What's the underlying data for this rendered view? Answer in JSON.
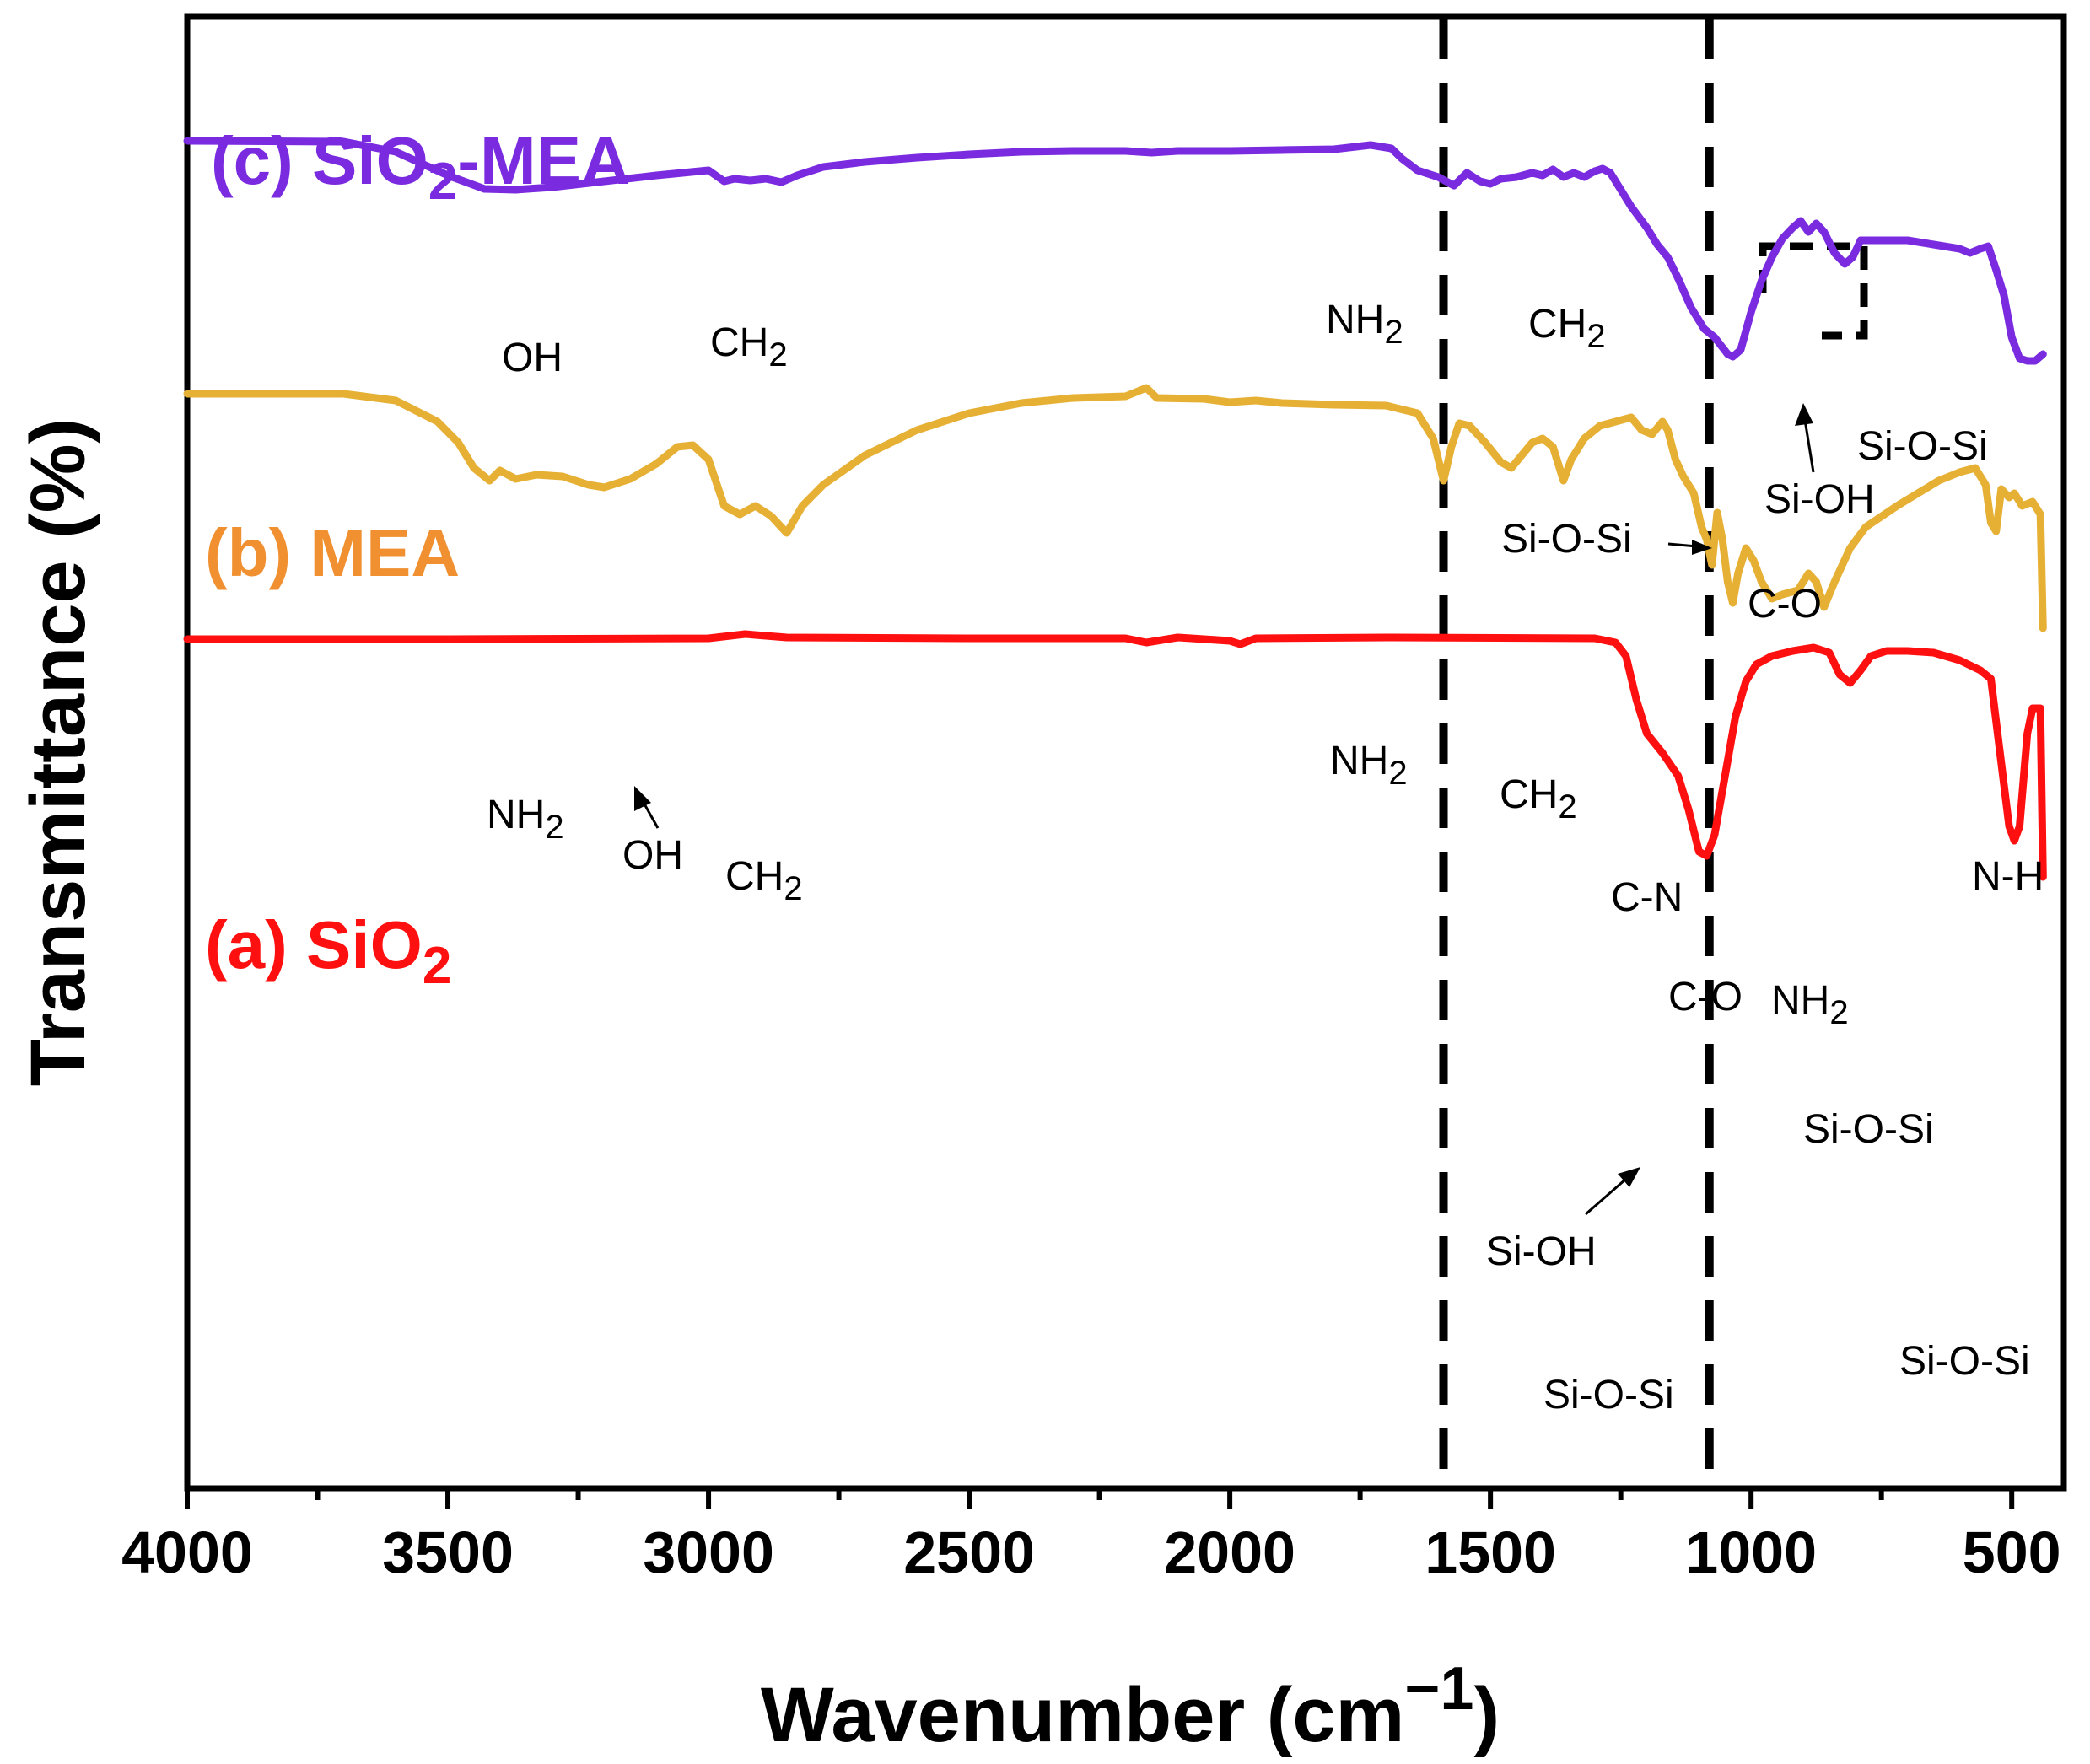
{
  "chart_data": {
    "type": "line",
    "title": "",
    "xlabel": "Wavenumber (cm",
    "xlabel_sup": "−1",
    "xlabel_close": ")",
    "ylabel": "Transmittance (%)",
    "xlim": [
      4000,
      400
    ],
    "x_reversed": true,
    "y_ticks_shown": false,
    "x_ticks": [
      4000,
      3500,
      3000,
      2500,
      2000,
      1500,
      1000,
      500
    ],
    "x_tick_labels": [
      "4000",
      "3500",
      "3000",
      "2500",
      "2000",
      "1500",
      "1000",
      "500"
    ],
    "reference_lines": [
      1590,
      1080
    ],
    "series": [
      {
        "id": "a",
        "name": "(a) SiO",
        "name_sub": "2",
        "name_suffix": "",
        "color": "#ff1010",
        "points": [
          [
            4000,
            758
          ],
          [
            3500,
            758
          ],
          [
            3000,
            757
          ],
          [
            2930,
            752
          ],
          [
            2850,
            756
          ],
          [
            2500,
            757
          ],
          [
            2200,
            757
          ],
          [
            2160,
            762
          ],
          [
            2100,
            756
          ],
          [
            2000,
            760
          ],
          [
            1980,
            764
          ],
          [
            1950,
            757
          ],
          [
            1700,
            756
          ],
          [
            1300,
            757
          ],
          [
            1260,
            762
          ],
          [
            1240,
            778
          ],
          [
            1220,
            830
          ],
          [
            1200,
            870
          ],
          [
            1170,
            893
          ],
          [
            1140,
            920
          ],
          [
            1120,
            960
          ],
          [
            1100,
            1010
          ],
          [
            1085,
            1015
          ],
          [
            1070,
            990
          ],
          [
            1050,
            920
          ],
          [
            1030,
            850
          ],
          [
            1010,
            808
          ],
          [
            990,
            788
          ],
          [
            960,
            778
          ],
          [
            920,
            772
          ],
          [
            880,
            768
          ],
          [
            850,
            774
          ],
          [
            830,
            800
          ],
          [
            810,
            810
          ],
          [
            790,
            795
          ],
          [
            770,
            778
          ],
          [
            740,
            772
          ],
          [
            700,
            772
          ],
          [
            650,
            774
          ],
          [
            600,
            783
          ],
          [
            560,
            795
          ],
          [
            540,
            805
          ],
          [
            525,
            880
          ],
          [
            505,
            980
          ],
          [
            495,
            997
          ],
          [
            485,
            980
          ],
          [
            470,
            870
          ],
          [
            460,
            840
          ],
          [
            445,
            840
          ],
          [
            440,
            1040
          ]
        ]
      },
      {
        "id": "b",
        "name": "(b) MEA",
        "name_sub": "",
        "name_suffix": "",
        "color": "#e6b035",
        "points": [
          [
            4000,
            467
          ],
          [
            3700,
            467
          ],
          [
            3600,
            475
          ],
          [
            3520,
            500
          ],
          [
            3480,
            525
          ],
          [
            3450,
            555
          ],
          [
            3420,
            570
          ],
          [
            3400,
            558
          ],
          [
            3370,
            568
          ],
          [
            3330,
            563
          ],
          [
            3280,
            565
          ],
          [
            3230,
            575
          ],
          [
            3200,
            578
          ],
          [
            3150,
            568
          ],
          [
            3100,
            550
          ],
          [
            3060,
            530
          ],
          [
            3030,
            528
          ],
          [
            3000,
            545
          ],
          [
            2970,
            600
          ],
          [
            2940,
            610
          ],
          [
            2910,
            600
          ],
          [
            2880,
            612
          ],
          [
            2850,
            632
          ],
          [
            2820,
            600
          ],
          [
            2780,
            575
          ],
          [
            2700,
            540
          ],
          [
            2600,
            510
          ],
          [
            2500,
            490
          ],
          [
            2400,
            478
          ],
          [
            2300,
            472
          ],
          [
            2200,
            470
          ],
          [
            2160,
            460
          ],
          [
            2140,
            472
          ],
          [
            2050,
            473
          ],
          [
            2000,
            477
          ],
          [
            1950,
            475
          ],
          [
            1900,
            478
          ],
          [
            1800,
            480
          ],
          [
            1700,
            481
          ],
          [
            1640,
            490
          ],
          [
            1610,
            520
          ],
          [
            1590,
            570
          ],
          [
            1575,
            530
          ],
          [
            1560,
            502
          ],
          [
            1540,
            505
          ],
          [
            1510,
            525
          ],
          [
            1480,
            548
          ],
          [
            1460,
            555
          ],
          [
            1440,
            540
          ],
          [
            1420,
            525
          ],
          [
            1400,
            520
          ],
          [
            1380,
            530
          ],
          [
            1360,
            570
          ],
          [
            1345,
            545
          ],
          [
            1320,
            520
          ],
          [
            1290,
            505
          ],
          [
            1260,
            500
          ],
          [
            1230,
            495
          ],
          [
            1210,
            510
          ],
          [
            1190,
            515
          ],
          [
            1170,
            500
          ],
          [
            1160,
            510
          ],
          [
            1145,
            545
          ],
          [
            1130,
            565
          ],
          [
            1110,
            585
          ],
          [
            1095,
            625
          ],
          [
            1085,
            640
          ],
          [
            1075,
            670
          ],
          [
            1065,
            608
          ],
          [
            1055,
            640
          ],
          [
            1045,
            690
          ],
          [
            1035,
            715
          ],
          [
            1025,
            680
          ],
          [
            1010,
            650
          ],
          [
            995,
            665
          ],
          [
            980,
            690
          ],
          [
            960,
            710
          ],
          [
            940,
            705
          ],
          [
            910,
            700
          ],
          [
            890,
            680
          ],
          [
            875,
            690
          ],
          [
            860,
            720
          ],
          [
            840,
            690
          ],
          [
            810,
            650
          ],
          [
            780,
            625
          ],
          [
            720,
            600
          ],
          [
            680,
            585
          ],
          [
            640,
            570
          ],
          [
            600,
            560
          ],
          [
            570,
            555
          ],
          [
            550,
            575
          ],
          [
            540,
            620
          ],
          [
            530,
            630
          ],
          [
            520,
            580
          ],
          [
            505,
            590
          ],
          [
            495,
            585
          ],
          [
            480,
            600
          ],
          [
            460,
            595
          ],
          [
            445,
            610
          ],
          [
            440,
            745
          ]
        ]
      },
      {
        "id": "c",
        "name": "(c) SiO",
        "name_sub": "2",
        "name_suffix": "-MEA",
        "color": "#7a2be0",
        "points": [
          [
            4000,
            167
          ],
          [
            3700,
            168
          ],
          [
            3600,
            180
          ],
          [
            3500,
            208
          ],
          [
            3430,
            224
          ],
          [
            3370,
            225
          ],
          [
            3300,
            222
          ],
          [
            3200,
            215
          ],
          [
            3100,
            208
          ],
          [
            3000,
            202
          ],
          [
            2970,
            215
          ],
          [
            2950,
            212
          ],
          [
            2920,
            214
          ],
          [
            2890,
            212
          ],
          [
            2860,
            216
          ],
          [
            2830,
            208
          ],
          [
            2780,
            198
          ],
          [
            2700,
            192
          ],
          [
            2600,
            187
          ],
          [
            2500,
            183
          ],
          [
            2400,
            180
          ],
          [
            2300,
            179
          ],
          [
            2200,
            179
          ],
          [
            2150,
            181
          ],
          [
            2100,
            179
          ],
          [
            2000,
            179
          ],
          [
            1900,
            178
          ],
          [
            1800,
            177
          ],
          [
            1730,
            172
          ],
          [
            1690,
            176
          ],
          [
            1670,
            188
          ],
          [
            1640,
            202
          ],
          [
            1600,
            210
          ],
          [
            1570,
            220
          ],
          [
            1545,
            205
          ],
          [
            1520,
            215
          ],
          [
            1500,
            218
          ],
          [
            1480,
            212
          ],
          [
            1450,
            210
          ],
          [
            1420,
            205
          ],
          [
            1400,
            208
          ],
          [
            1380,
            201
          ],
          [
            1360,
            210
          ],
          [
            1340,
            205
          ],
          [
            1320,
            210
          ],
          [
            1300,
            203
          ],
          [
            1285,
            200
          ],
          [
            1270,
            205
          ],
          [
            1250,
            225
          ],
          [
            1230,
            245
          ],
          [
            1200,
            270
          ],
          [
            1180,
            290
          ],
          [
            1160,
            305
          ],
          [
            1140,
            330
          ],
          [
            1115,
            365
          ],
          [
            1090,
            390
          ],
          [
            1070,
            400
          ],
          [
            1045,
            420
          ],
          [
            1035,
            423
          ],
          [
            1020,
            415
          ],
          [
            1000,
            370
          ],
          [
            980,
            333
          ],
          [
            960,
            305
          ],
          [
            940,
            283
          ],
          [
            920,
            270
          ],
          [
            905,
            262
          ],
          [
            890,
            275
          ],
          [
            875,
            265
          ],
          [
            860,
            275
          ],
          [
            840,
            300
          ],
          [
            820,
            313
          ],
          [
            805,
            305
          ],
          [
            790,
            285
          ],
          [
            760,
            285
          ],
          [
            700,
            285
          ],
          [
            650,
            290
          ],
          [
            600,
            295
          ],
          [
            580,
            300
          ],
          [
            560,
            295
          ],
          [
            545,
            292
          ],
          [
            530,
            320
          ],
          [
            515,
            350
          ],
          [
            500,
            400
          ],
          [
            485,
            425
          ],
          [
            470,
            428
          ],
          [
            455,
            428
          ],
          [
            440,
            420
          ]
        ]
      }
    ],
    "annotations": [
      {
        "text": "OH",
        "sub": ""
      },
      {
        "text": "CH",
        "sub": "2"
      },
      {
        "text": "NH",
        "sub": "2"
      },
      {
        "text": "CH",
        "sub": "2"
      },
      {
        "text": "Si-O-Si",
        "sub": ""
      },
      {
        "text": "C-O",
        "sub": ""
      },
      {
        "text": "Si-OH",
        "sub": ""
      },
      {
        "text": "Si-O-Si",
        "sub": ""
      },
      {
        "text": "NH",
        "sub": "2"
      },
      {
        "text": "OH",
        "sub": ""
      },
      {
        "text": "CH",
        "sub": "2"
      },
      {
        "text": "NH",
        "sub": "2"
      },
      {
        "text": "CH",
        "sub": "2"
      },
      {
        "text": "C-N",
        "sub": ""
      },
      {
        "text": "C-O",
        "sub": ""
      },
      {
        "text": "NH",
        "sub": "2"
      },
      {
        "text": "N-H",
        "sub": ""
      },
      {
        "text": "Si-OH",
        "sub": ""
      },
      {
        "text": "Si-O-Si",
        "sub": ""
      },
      {
        "text": "Si-O-Si",
        "sub": ""
      },
      {
        "text": "Si-O-Si",
        "sub": ""
      }
    ]
  }
}
